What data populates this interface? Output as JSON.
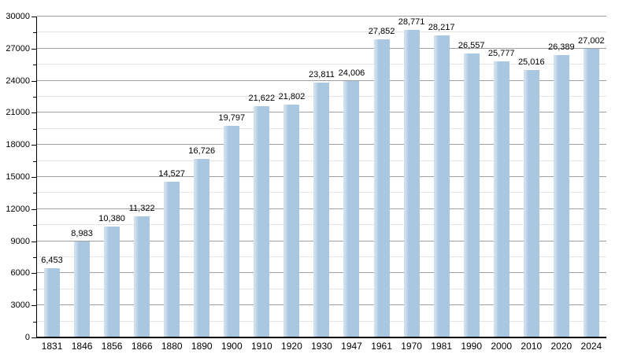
{
  "chart_data": {
    "type": "bar",
    "title": "",
    "xlabel": "",
    "ylabel": "",
    "categories": [
      "1831",
      "1846",
      "1856",
      "1866",
      "1880",
      "1890",
      "1900",
      "1910",
      "1920",
      "1930",
      "1947",
      "1961",
      "1970",
      "1981",
      "1990",
      "2000",
      "2010",
      "2020",
      "2024"
    ],
    "values": [
      6453,
      8983,
      10380,
      11322,
      14527,
      16726,
      19797,
      21622,
      21802,
      23811,
      24006,
      27852,
      28771,
      28217,
      26557,
      25777,
      25016,
      26389,
      27002
    ],
    "value_labels": [
      "6,453",
      "8,983",
      "10,380",
      "11,322",
      "14,527",
      "16,726",
      "19,797",
      "21,622",
      "21,802",
      "23,811",
      "24,006",
      "27,852",
      "28,771",
      "28,217",
      "26,557",
      "25,777",
      "25,016",
      "26,389",
      "27,002"
    ],
    "ylim": [
      0,
      30000
    ],
    "y_major_step": 3000,
    "y_minor_step": 1500,
    "y_tick_labels": [
      "0",
      "3000",
      "6000",
      "9000",
      "12000",
      "15000",
      "18000",
      "21000",
      "24000",
      "27000",
      "30000"
    ],
    "grid": "on",
    "legend_position": "none",
    "colors": {
      "bar_fill": "#a9c7e1",
      "bar_highlight": "#cfdfee",
      "gridline_major": "#9e9e9e",
      "gridline_minor": "#e4e4e4",
      "axis": "#000000",
      "text": "#000000",
      "background": "#ffffff"
    }
  }
}
